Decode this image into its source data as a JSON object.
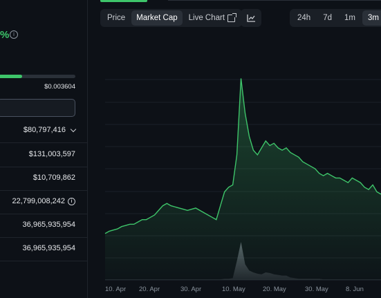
{
  "summary": {
    "change_partial": "%",
    "info_icon": "info-icon",
    "range_fill_fraction": 0.29,
    "range_high": "$0.003604"
  },
  "stats": [
    {
      "value": "$80,797,416",
      "icon": "chevron-down-icon"
    },
    {
      "value": "$131,003,597",
      "icon": ""
    },
    {
      "value": "$10,709,862",
      "icon": ""
    },
    {
      "value": "22,799,008,242",
      "icon": "info-icon"
    },
    {
      "value": "36,965,935,954",
      "icon": ""
    },
    {
      "value": "36,965,935,954",
      "icon": ""
    }
  ],
  "chart_tabs": [
    "Price",
    "Market Cap",
    "Live Chart"
  ],
  "active_tab": "Market Cap",
  "chart_type_icon": "line-chart-icon",
  "ranges": [
    "24h",
    "7d",
    "1m",
    "3m"
  ],
  "active_range": "3m",
  "colors": {
    "accent": "#3ec56a",
    "background": "#0d1117",
    "panel": "#1a1f26"
  },
  "chart_data": {
    "type": "area",
    "x_tick_labels": [
      "10. Apr",
      "20. Apr",
      "30. Apr",
      "10. May",
      "20. May",
      "30. May",
      "8. Jun"
    ],
    "grid": "horizontal",
    "series": [
      {
        "values": [
          18,
          19,
          19.5,
          20,
          21,
          21.5,
          22,
          22,
          23,
          24,
          24,
          25,
          26,
          28,
          30,
          31,
          30,
          29.5,
          29,
          28.5,
          28,
          28.5,
          29,
          28,
          27,
          26,
          25,
          24,
          30,
          36,
          38,
          39,
          52,
          85,
          70,
          60,
          54,
          52,
          55,
          58,
          56,
          57,
          55,
          54,
          55,
          53,
          52,
          51,
          49,
          48,
          47,
          46,
          44,
          43,
          44,
          43,
          42,
          42,
          41,
          40,
          42,
          41,
          40,
          38,
          37,
          39,
          36,
          35
        ]
      }
    ],
    "volume": [
      1,
      1,
      1,
      1,
      1,
      1,
      1,
      1,
      1,
      1,
      1,
      1,
      1,
      1,
      1,
      1,
      1,
      1,
      1,
      1,
      1,
      1,
      1,
      1,
      1,
      1,
      1,
      1,
      1,
      2,
      2,
      3,
      30,
      60,
      25,
      15,
      12,
      10,
      9,
      12,
      11,
      9,
      8,
      7,
      7,
      4,
      3,
      2,
      2,
      2,
      2,
      2,
      2,
      1,
      1,
      1,
      1,
      1,
      1,
      1,
      1,
      1,
      1,
      1,
      1,
      1,
      1,
      1
    ]
  }
}
